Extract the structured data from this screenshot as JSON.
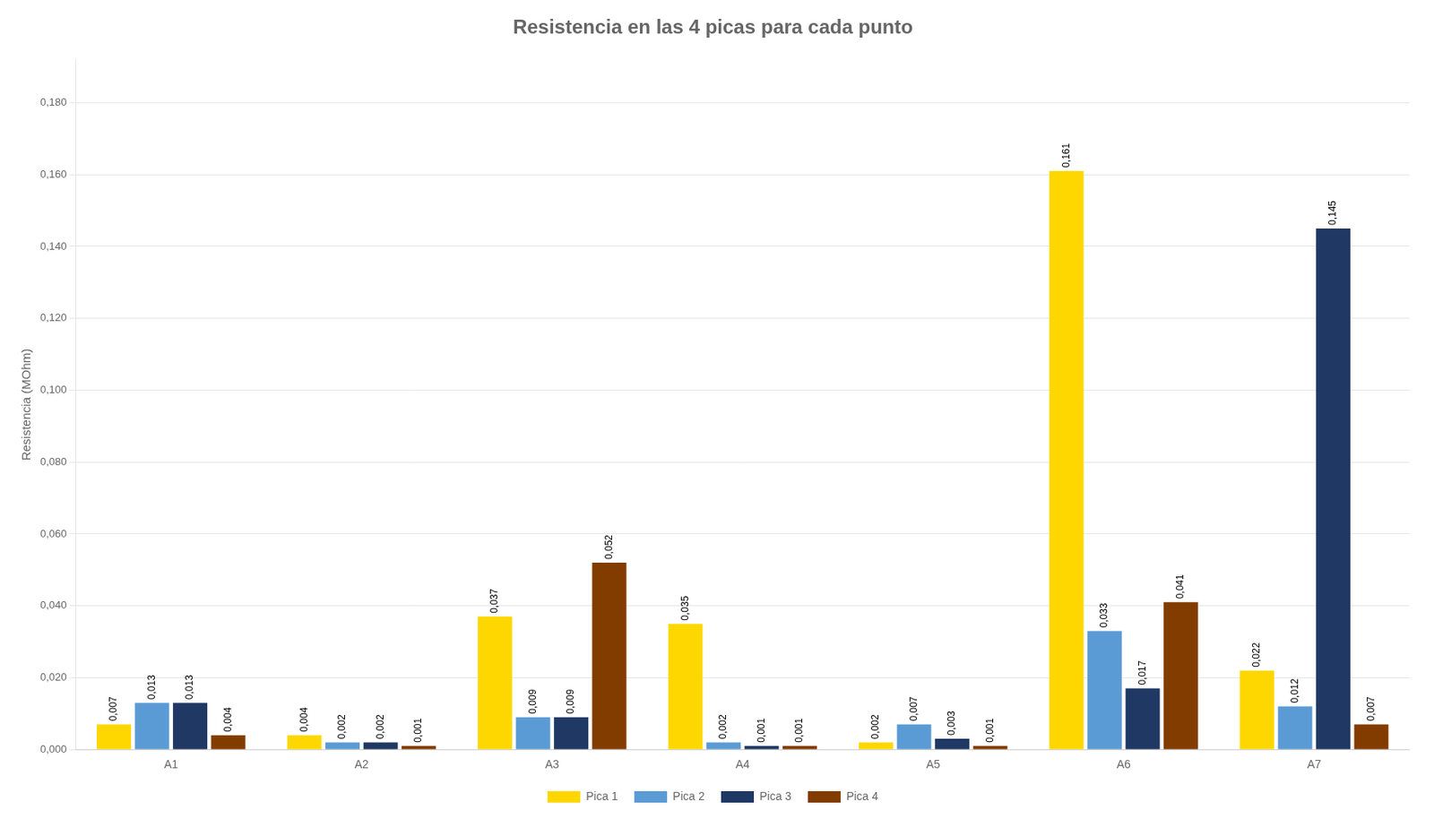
{
  "chart_data": {
    "type": "bar",
    "title": "Resistencia en las 4 picas para cada punto",
    "ylabel": "Resistencia (MOhm)",
    "categories": [
      "A1",
      "A2",
      "A3",
      "A4",
      "A5",
      "A6",
      "A7"
    ],
    "series": [
      {
        "name": "Pica 1",
        "color": "#FFD700",
        "values": [
          0.007,
          0.004,
          0.037,
          0.035,
          0.002,
          0.161,
          0.022
        ],
        "value_labels": [
          "0,007",
          "0,004",
          "0,037",
          "0,035",
          "0,002",
          "0,161",
          "0,022"
        ]
      },
      {
        "name": "Pica 2",
        "color": "#5B9BD5",
        "values": [
          0.013,
          0.002,
          0.009,
          0.002,
          0.007,
          0.033,
          0.012
        ],
        "value_labels": [
          "0,013",
          "0,002",
          "0,009",
          "0,002",
          "0,007",
          "0,033",
          "0,012"
        ]
      },
      {
        "name": "Pica 3",
        "color": "#203864",
        "values": [
          0.013,
          0.002,
          0.009,
          0.001,
          0.003,
          0.017,
          0.145
        ],
        "value_labels": [
          "0,013",
          "0,002",
          "0,009",
          "0,001",
          "0,003",
          "0,017",
          "0,145"
        ]
      },
      {
        "name": "Pica 4",
        "color": "#833C00",
        "values": [
          0.004,
          0.001,
          0.052,
          0.001,
          0.001,
          0.041,
          0.007
        ],
        "value_labels": [
          "0,004",
          "0,001",
          "0,052",
          "0,001",
          "0,001",
          "0,041",
          "0,007"
        ]
      }
    ],
    "ylim": [
      0,
      0.192
    ],
    "yticks": [
      {
        "value": 0.0,
        "label": "0,000"
      },
      {
        "value": 0.02,
        "label": "0,020"
      },
      {
        "value": 0.04,
        "label": "0,040"
      },
      {
        "value": 0.06,
        "label": "0,060"
      },
      {
        "value": 0.08,
        "label": "0,080"
      },
      {
        "value": 0.1,
        "label": "0,100"
      },
      {
        "value": 0.12,
        "label": "0,120"
      },
      {
        "value": 0.14,
        "label": "0,140"
      },
      {
        "value": 0.16,
        "label": "0,160"
      },
      {
        "value": 0.18,
        "label": "0,180"
      }
    ],
    "grid": true,
    "legend": "bottom",
    "data_labels": true
  }
}
